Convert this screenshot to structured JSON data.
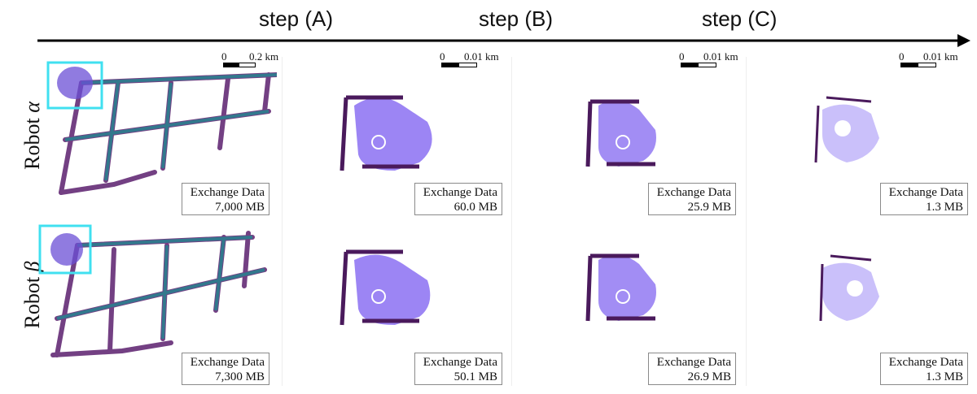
{
  "steps": [
    "step (A)",
    "step (B)",
    "step (C)"
  ],
  "rows": [
    {
      "label_text": "Robot ",
      "label_symbol": "α"
    },
    {
      "label_text": "Robot ",
      "label_symbol": "β"
    }
  ],
  "exchange_label": "Exchange Data",
  "exchange_values": [
    [
      "7,000 MB",
      "60.0 MB",
      "25.9 MB",
      "1.3 MB"
    ],
    [
      "7,300 MB",
      "50.1 MB",
      "26.9 MB",
      "1.3 MB"
    ]
  ],
  "scale_bars": [
    {
      "zero": "0",
      "max": "0.2 km"
    },
    {
      "zero": "0",
      "max": "0.01 km"
    },
    {
      "zero": "0",
      "max": "0.01 km"
    },
    {
      "zero": "0",
      "max": "0.01 km"
    }
  ],
  "colors": {
    "highlight_box": "#40e0f0",
    "map_purple": "#5b1f6e",
    "map_teal": "#2b7f8f",
    "map_violet": "#7b5cf0"
  }
}
